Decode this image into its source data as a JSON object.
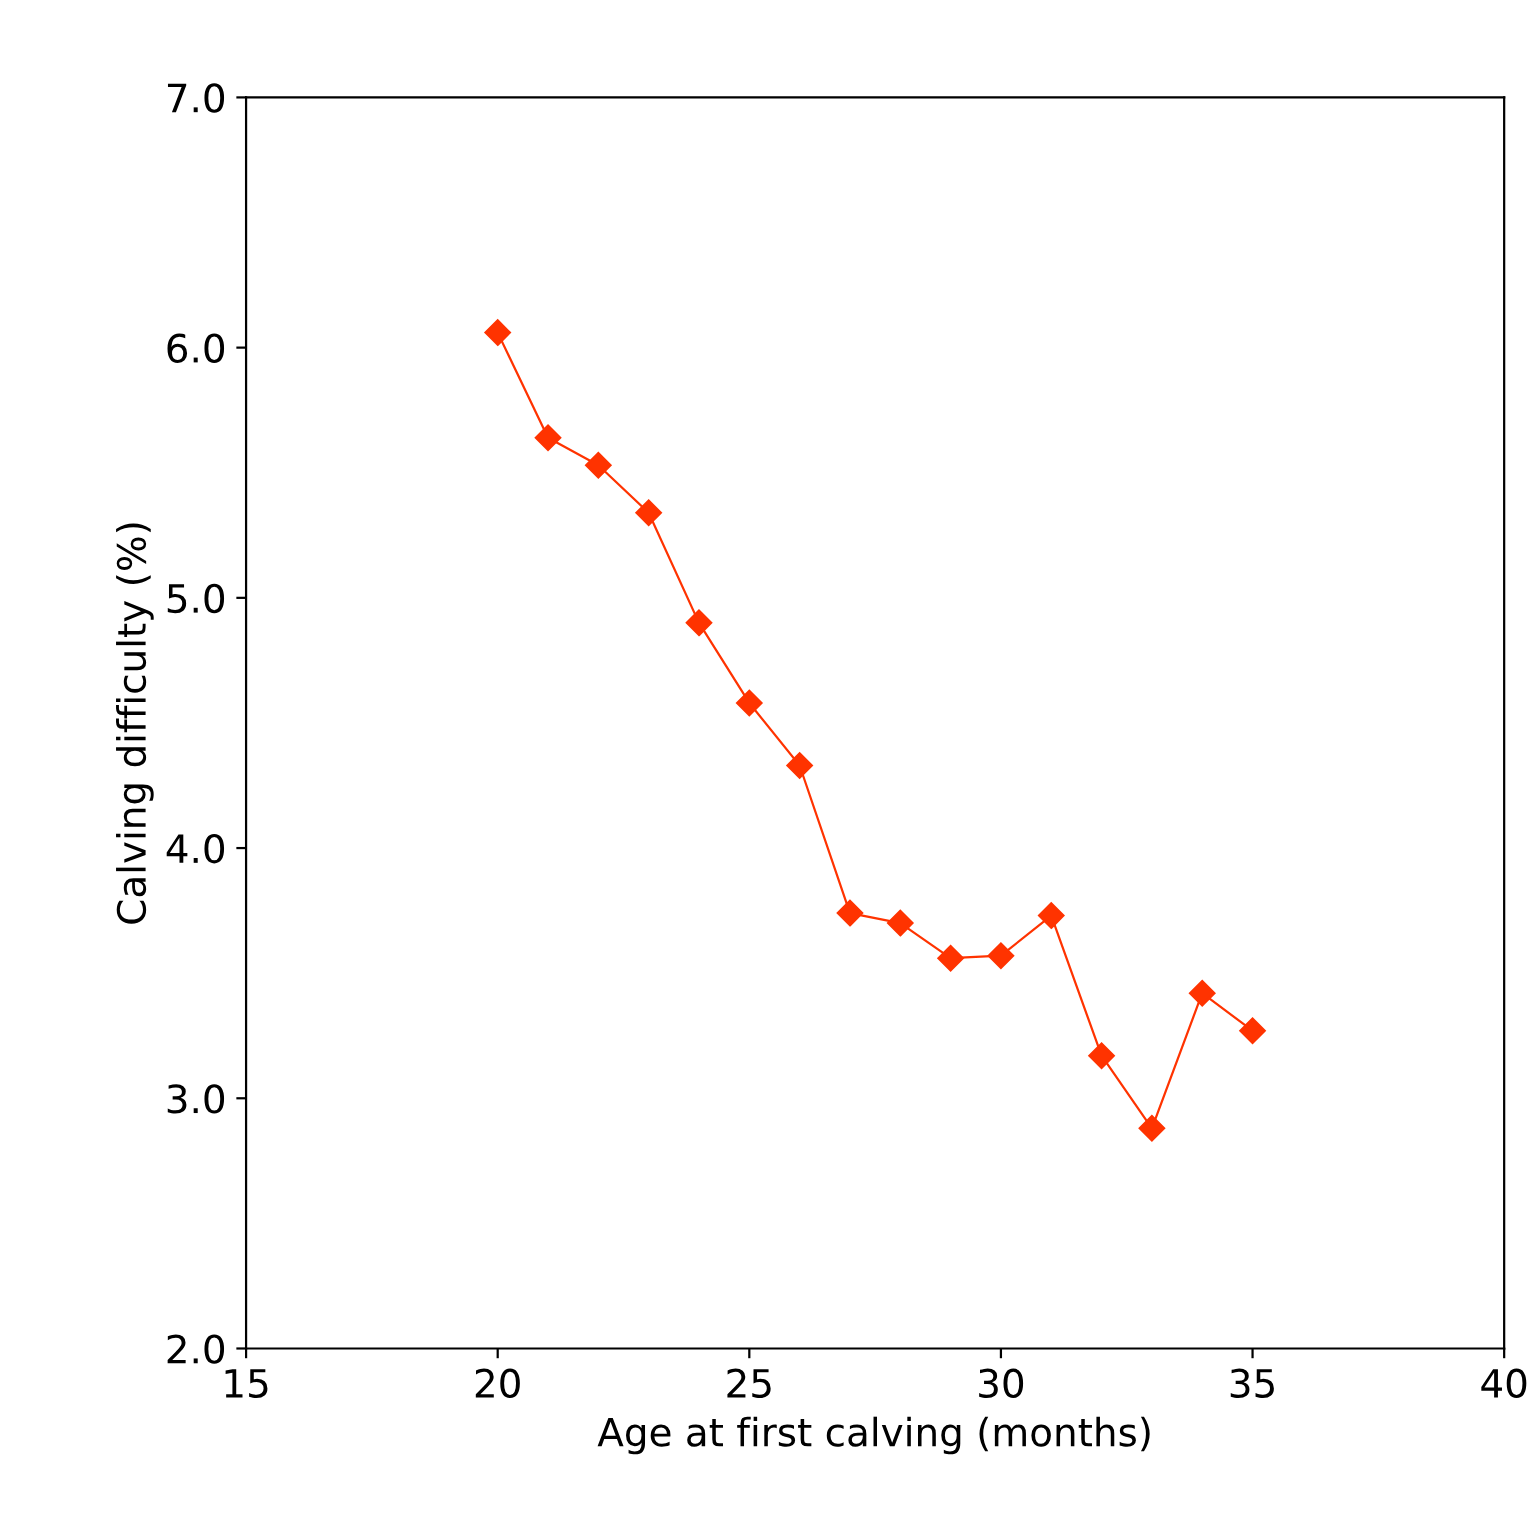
{
  "chart_data": {
    "type": "line",
    "xlabel": "Age at first calving (months)",
    "ylabel": "Calving difficulty (%)",
    "x": [
      20,
      21,
      22,
      23,
      24,
      25,
      26,
      27,
      28,
      29,
      30,
      31,
      32,
      33,
      34,
      35
    ],
    "series": [
      {
        "color": "#ff3300",
        "values": [
          6.06,
          5.64,
          5.53,
          5.34,
          4.9,
          4.58,
          4.33,
          3.74,
          3.7,
          3.56,
          3.57,
          3.73,
          3.17,
          2.88,
          3.42,
          3.27
        ]
      }
    ],
    "xlim": [
      15,
      40
    ],
    "xticks": [
      15,
      20,
      25,
      30,
      35,
      40
    ],
    "ylim": [
      2.0,
      7.0
    ],
    "yticks": [
      {
        "value": 2,
        "label": "2.0"
      },
      {
        "value": 3,
        "label": "3.0"
      },
      {
        "value": 4,
        "label": "4.0"
      },
      {
        "value": 5,
        "label": "5.0"
      },
      {
        "value": 6,
        "label": "6.0"
      },
      {
        "value": 7,
        "label": "7.0"
      }
    ],
    "marker": "diamond",
    "line_style": "solid",
    "grid": false,
    "legend": false
  }
}
